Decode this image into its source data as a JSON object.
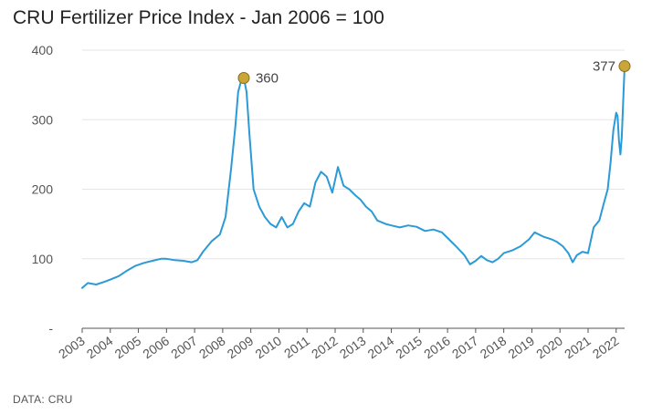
{
  "title": "CRU Fertilizer Price Index - Jan 2006 = 100",
  "source": "DATA: CRU",
  "chart_data": {
    "type": "line",
    "title": "CRU Fertilizer Price Index - Jan 2006 = 100",
    "xlabel": "",
    "ylabel": "",
    "ylim": [
      0,
      400
    ],
    "xlim": [
      2003.0,
      2022.3
    ],
    "y_ticks": [
      {
        "value": 0,
        "label": "-"
      },
      {
        "value": 100,
        "label": "100"
      },
      {
        "value": 200,
        "label": "200"
      },
      {
        "value": 300,
        "label": "300"
      },
      {
        "value": 400,
        "label": "400"
      }
    ],
    "x_ticks": [
      2003,
      2004,
      2005,
      2006,
      2007,
      2008,
      2009,
      2010,
      2011,
      2012,
      2013,
      2014,
      2015,
      2016,
      2017,
      2018,
      2019,
      2020,
      2021,
      2022
    ],
    "grid": "horizontal",
    "line_color": "#2b9ad6",
    "marker_color": "#c9a53a",
    "series": [
      {
        "name": "",
        "x": [
          2003.0,
          2003.2,
          2003.5,
          2003.8,
          2004.0,
          2004.3,
          2004.6,
          2004.9,
          2005.2,
          2005.5,
          2005.8,
          2006.0,
          2006.3,
          2006.6,
          2006.9,
          2007.1,
          2007.3,
          2007.6,
          2007.9,
          2008.1,
          2008.3,
          2008.45,
          2008.55,
          2008.65,
          2008.75,
          2008.85,
          2008.95,
          2009.1,
          2009.3,
          2009.5,
          2009.7,
          2009.9,
          2010.1,
          2010.3,
          2010.5,
          2010.7,
          2010.9,
          2011.1,
          2011.3,
          2011.5,
          2011.7,
          2011.9,
          2012.1,
          2012.3,
          2012.5,
          2012.7,
          2012.9,
          2013.1,
          2013.3,
          2013.5,
          2013.8,
          2014.0,
          2014.3,
          2014.6,
          2014.9,
          2015.2,
          2015.5,
          2015.8,
          2016.0,
          2016.3,
          2016.6,
          2016.8,
          2017.0,
          2017.2,
          2017.4,
          2017.6,
          2017.8,
          2018.0,
          2018.3,
          2018.6,
          2018.9,
          2019.1,
          2019.4,
          2019.7,
          2019.9,
          2020.1,
          2020.3,
          2020.45,
          2020.6,
          2020.8,
          2021.0,
          2021.2,
          2021.4,
          2021.55,
          2021.7,
          2021.8,
          2021.9,
          2022.0,
          2022.05,
          2022.1,
          2022.15,
          2022.2,
          2022.3
        ],
        "y": [
          58,
          65,
          63,
          67,
          70,
          75,
          83,
          90,
          94,
          97,
          100,
          100,
          98,
          97,
          95,
          98,
          110,
          125,
          135,
          160,
          230,
          290,
          340,
          355,
          360,
          340,
          280,
          200,
          175,
          160,
          150,
          145,
          160,
          145,
          150,
          168,
          180,
          175,
          210,
          225,
          218,
          195,
          232,
          205,
          200,
          192,
          185,
          175,
          168,
          155,
          150,
          148,
          145,
          148,
          146,
          140,
          142,
          138,
          130,
          118,
          105,
          92,
          97,
          104,
          98,
          95,
          100,
          108,
          112,
          118,
          128,
          138,
          132,
          128,
          124,
          118,
          108,
          95,
          105,
          110,
          108,
          145,
          155,
          178,
          200,
          238,
          285,
          310,
          305,
          270,
          250,
          275,
          377
        ]
      }
    ],
    "annotations": [
      {
        "x": 2008.75,
        "y": 360,
        "label": "360",
        "side": "right"
      },
      {
        "x": 2022.3,
        "y": 377,
        "label": "377",
        "side": "left"
      }
    ]
  }
}
